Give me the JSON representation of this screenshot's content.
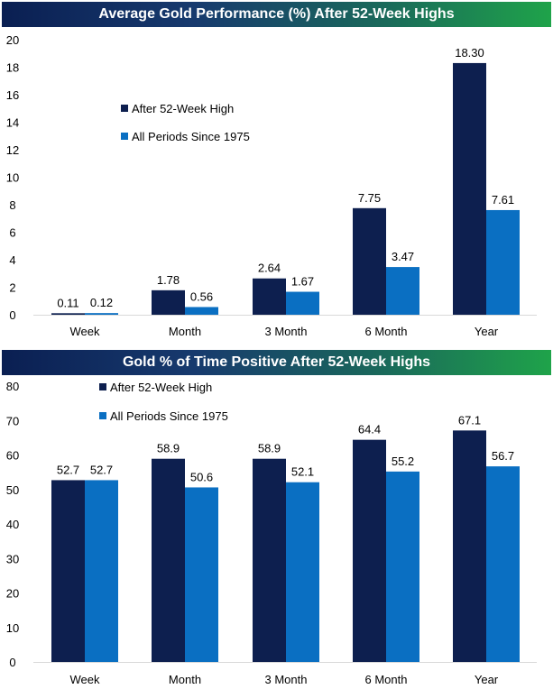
{
  "colors": {
    "series1": "#0d1f4f",
    "series2": "#0a6fc2",
    "axis_text": "#000000"
  },
  "chart_data": [
    {
      "type": "bar",
      "title": "Average Gold Performance (%) After 52-Week Highs",
      "categories": [
        "Week",
        "Month",
        "3 Month",
        "6 Month",
        "Year"
      ],
      "series": [
        {
          "name": "After 52-Week High",
          "values": [
            0.11,
            1.78,
            2.64,
            7.75,
            18.3
          ],
          "labels": [
            "0.11",
            "1.78",
            "2.64",
            "7.75",
            "18.30"
          ]
        },
        {
          "name": "All Periods Since 1975",
          "values": [
            0.12,
            0.56,
            1.67,
            3.47,
            7.61
          ],
          "labels": [
            "0.12",
            "0.56",
            "1.67",
            "3.47",
            "7.61"
          ]
        }
      ],
      "ylim": [
        0,
        20
      ],
      "yticks": [
        0,
        2,
        4,
        6,
        8,
        10,
        12,
        14,
        16,
        18,
        20
      ],
      "grid": false,
      "legend": "upper-left"
    },
    {
      "type": "bar",
      "title": "Gold % of Time Positive After 52-Week Highs",
      "categories": [
        "Week",
        "Month",
        "3 Month",
        "6 Month",
        "Year"
      ],
      "series": [
        {
          "name": "After 52-Week High",
          "values": [
            52.7,
            58.9,
            58.9,
            64.4,
            67.1
          ],
          "labels": [
            "52.7",
            "58.9",
            "58.9",
            "64.4",
            "67.1"
          ]
        },
        {
          "name": "All Periods Since 1975",
          "values": [
            52.7,
            50.6,
            52.1,
            55.2,
            56.7
          ],
          "labels": [
            "52.7",
            "50.6",
            "52.1",
            "55.2",
            "56.7"
          ]
        }
      ],
      "ylim": [
        0,
        80
      ],
      "yticks": [
        0,
        10,
        20,
        30,
        40,
        50,
        60,
        70,
        80
      ],
      "grid": false,
      "legend": "upper-left"
    }
  ]
}
